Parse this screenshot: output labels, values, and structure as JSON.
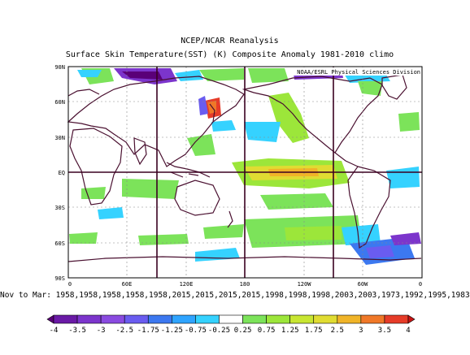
{
  "title": "NCEP/NCAR Reanalysis",
  "subtitle": "Surface Skin Temperature(SST) (K) Composite Anomaly 1981-2010 climo",
  "credit": "NOAA/ESRL Physical Sciences Division",
  "lat_ticks": [
    "90N",
    "60N",
    "30N",
    "EQ",
    "30S",
    "60S",
    "90S"
  ],
  "lon_ticks": [
    "0",
    "60E",
    "120E",
    "180",
    "120W",
    "60W",
    "0"
  ],
  "dates_text": "Nov to Mar: 1958,1958,1958,1958,1958,2015,2015,2015,2015,1998,1998,1998,2003,2003,1973,1992,1995,1983",
  "colorbar": {
    "labels": [
      "-4",
      "-3.5",
      "-3",
      "-2.5",
      "-1.75",
      "-1.25",
      "-0.75",
      "-0.25",
      "0.25",
      "0.75",
      "1.25",
      "1.75",
      "2.5",
      "3",
      "3.5",
      "4"
    ],
    "colors": [
      "#5a0078",
      "#6a1aa6",
      "#7c35cc",
      "#8a4be0",
      "#6a5cf0",
      "#3c78f0",
      "#2fa4ff",
      "#35d2ff",
      "#ffffff",
      "#7ce35a",
      "#9ce63a",
      "#c8e632",
      "#e0dc32",
      "#f0b428",
      "#f07828",
      "#e63c28",
      "#c81414"
    ]
  }
}
